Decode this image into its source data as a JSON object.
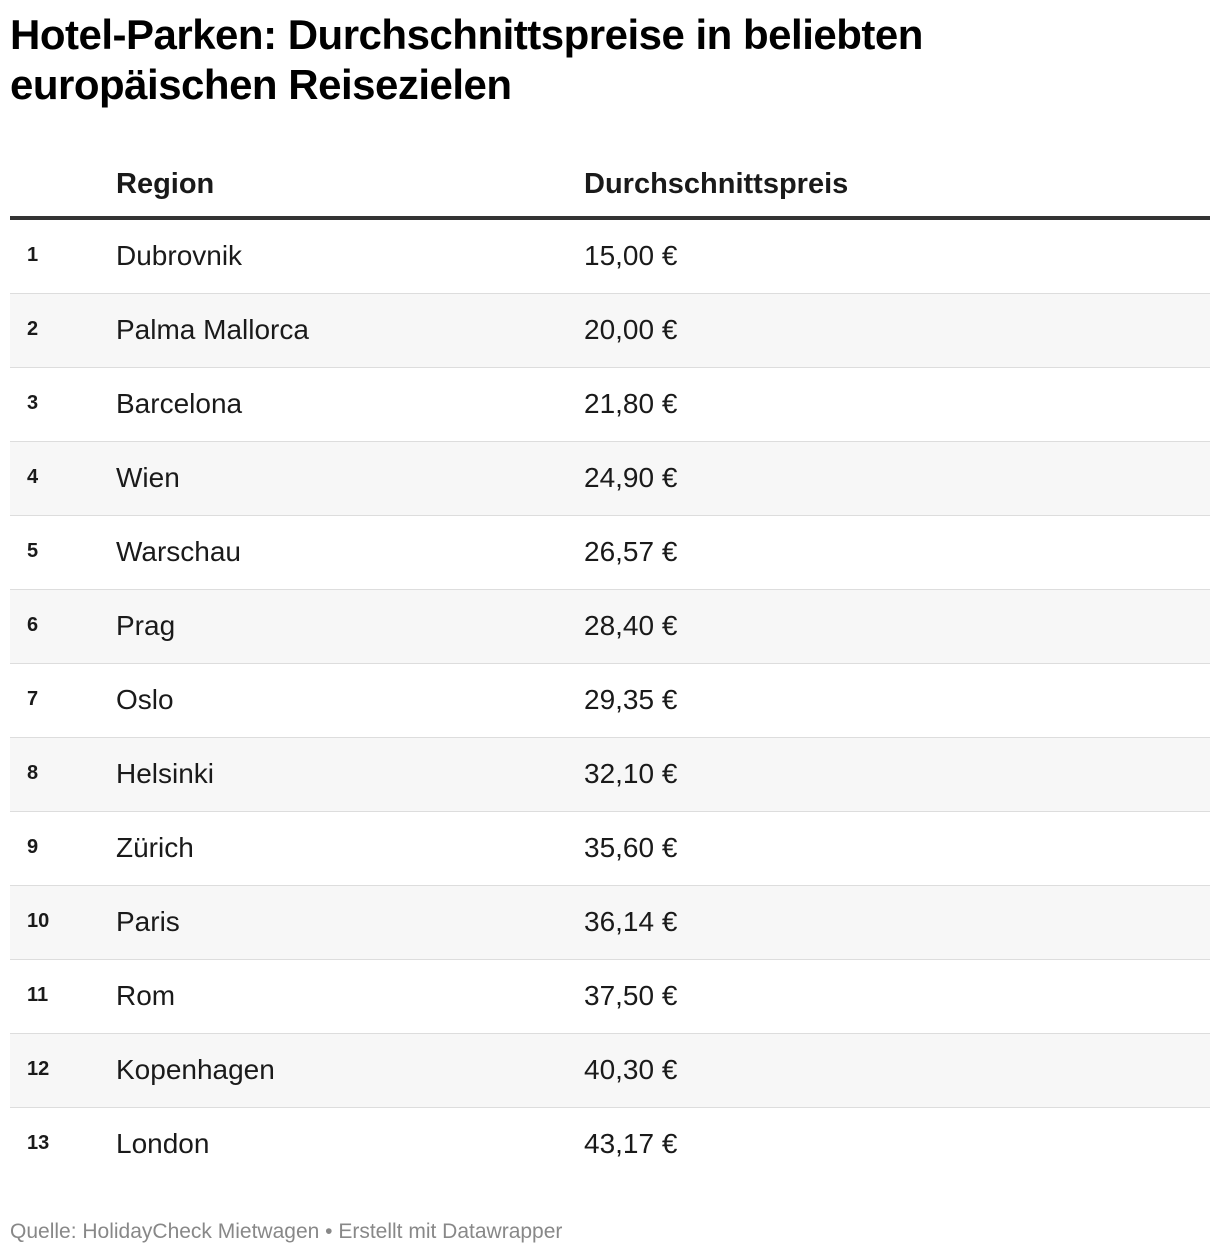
{
  "title": "Hotel-Parken: Durchschnittspreise in beliebten europäischen Reisezielen",
  "columns": {
    "rank": "",
    "region": "Region",
    "price": "Durchschnittspreis"
  },
  "chart_data": {
    "type": "table",
    "title": "Hotel-Parken: Durchschnittspreise in beliebten europäischen Reisezielen",
    "columns": [
      "",
      "Region",
      "Durchschnittspreis"
    ],
    "rows": [
      {
        "rank": "1",
        "region": "Dubrovnik",
        "price": "15,00 €",
        "value": 15.0
      },
      {
        "rank": "2",
        "region": "Palma Mallorca",
        "price": "20,00 €",
        "value": 20.0
      },
      {
        "rank": "3",
        "region": "Barcelona",
        "price": "21,80 €",
        "value": 21.8
      },
      {
        "rank": "4",
        "region": "Wien",
        "price": "24,90 €",
        "value": 24.9
      },
      {
        "rank": "5",
        "region": "Warschau",
        "price": "26,57 €",
        "value": 26.57
      },
      {
        "rank": "6",
        "region": "Prag",
        "price": "28,40 €",
        "value": 28.4
      },
      {
        "rank": "7",
        "region": "Oslo",
        "price": "29,35 €",
        "value": 29.35
      },
      {
        "rank": "8",
        "region": "Helsinki",
        "price": "32,10 €",
        "value": 32.1
      },
      {
        "rank": "9",
        "region": "Zürich",
        "price": "35,60 €",
        "value": 35.6
      },
      {
        "rank": "10",
        "region": "Paris",
        "price": "36,14 €",
        "value": 36.14
      },
      {
        "rank": "11",
        "region": "Rom",
        "price": "37,50 €",
        "value": 37.5
      },
      {
        "rank": "12",
        "region": "Kopenhagen",
        "price": "40,30 €",
        "value": 40.3
      },
      {
        "rank": "13",
        "region": "London",
        "price": "43,17 €",
        "value": 43.17
      }
    ]
  },
  "footer": {
    "text": "Quelle: HolidayCheck Mietwagen • Erstellt mit Datawrapper"
  }
}
